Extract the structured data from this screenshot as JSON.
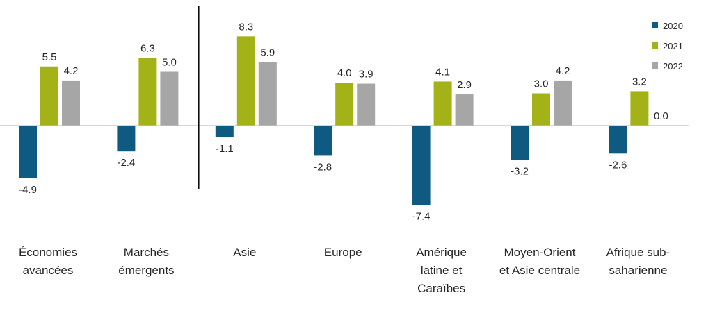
{
  "chart_data": {
    "type": "bar",
    "title": "",
    "xlabel": "",
    "ylabel": "",
    "ylim": [
      -8,
      9
    ],
    "grid": false,
    "legend_position": "top-right",
    "categories": [
      [
        "Économies",
        "avancées"
      ],
      [
        "Marchés",
        "émergents"
      ],
      [
        "Asie"
      ],
      [
        "Europe"
      ],
      [
        "Amérique",
        "latine et",
        "Caraïbes"
      ],
      [
        "Moyen-Orient",
        "et Asie centrale"
      ],
      [
        "Afrique sub-",
        "saharienne"
      ]
    ],
    "series": [
      {
        "name": "2020",
        "color": "#0f5a80",
        "values": [
          -4.9,
          -2.4,
          -1.1,
          -2.8,
          -7.4,
          -3.2,
          -2.6
        ],
        "labels": [
          "-4.9",
          "-2.4",
          "-1.1",
          "-2.8",
          "-7.4",
          "-3.2",
          "-2.6"
        ]
      },
      {
        "name": "2021",
        "color": "#a3b216",
        "values": [
          5.5,
          6.3,
          8.3,
          4.0,
          4.1,
          3.0,
          3.2
        ],
        "labels": [
          "5.5",
          "6.3",
          "8.3",
          "4.0",
          "4.1",
          "3.0",
          "3.2"
        ]
      },
      {
        "name": "2022",
        "color": "#a6a6a6",
        "values": [
          4.2,
          5.0,
          5.9,
          3.9,
          2.9,
          4.2,
          0.0
        ],
        "labels": [
          "4.2",
          "5.0",
          "5.9",
          "3.9",
          "2.9",
          "4.2",
          "0.0"
        ]
      }
    ],
    "separator_after_category": 1
  }
}
